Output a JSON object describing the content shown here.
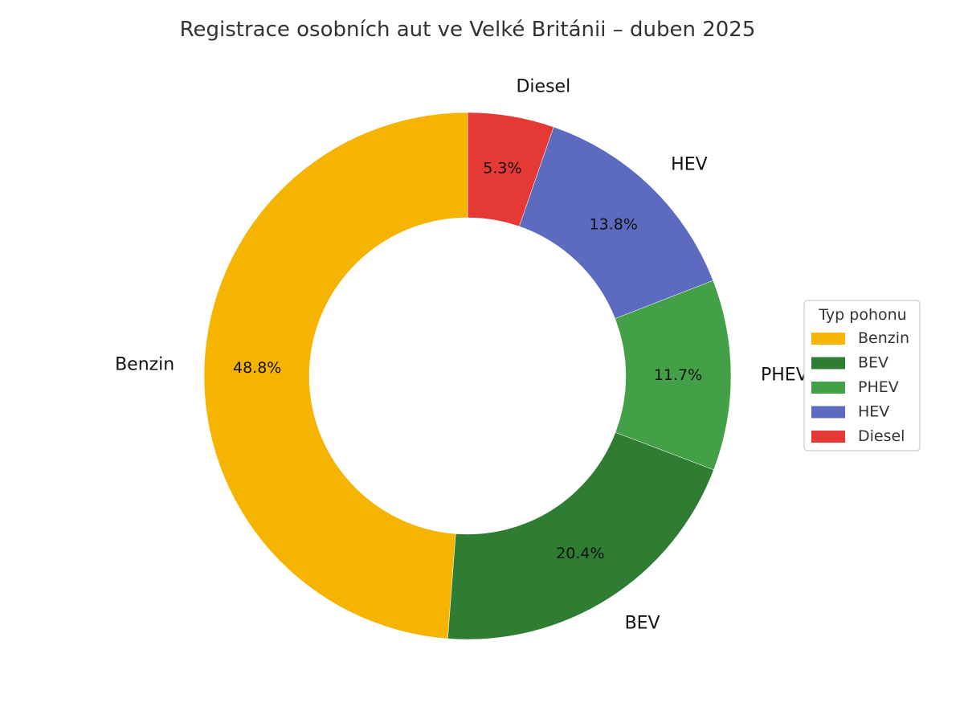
{
  "chart_data": {
    "type": "pie",
    "variant": "donut",
    "title": "Registrace osobních aut ve Velké Británii – duben 2025",
    "start_angle_deg": 90,
    "direction": "clockwise",
    "categories": [
      "Diesel",
      "HEV",
      "PHEV",
      "BEV",
      "Benzin"
    ],
    "values": [
      5.3,
      13.8,
      11.7,
      20.4,
      48.8
    ],
    "value_labels": [
      "5.3%",
      "13.8%",
      "11.7%",
      "20.4%",
      "48.8%"
    ],
    "colors": [
      "#E53935",
      "#5C6BC0",
      "#43A047",
      "#2E7D32",
      "#F4B400"
    ],
    "legend": {
      "title": "Typ pohonu",
      "placement": "right",
      "entries": [
        {
          "label": "Benzin",
          "color": "#F4B400"
        },
        {
          "label": "BEV",
          "color": "#2E7D32"
        },
        {
          "label": "PHEV",
          "color": "#43A047"
        },
        {
          "label": "HEV",
          "color": "#5C6BC0"
        },
        {
          "label": "Diesel",
          "color": "#E53935"
        }
      ]
    }
  }
}
